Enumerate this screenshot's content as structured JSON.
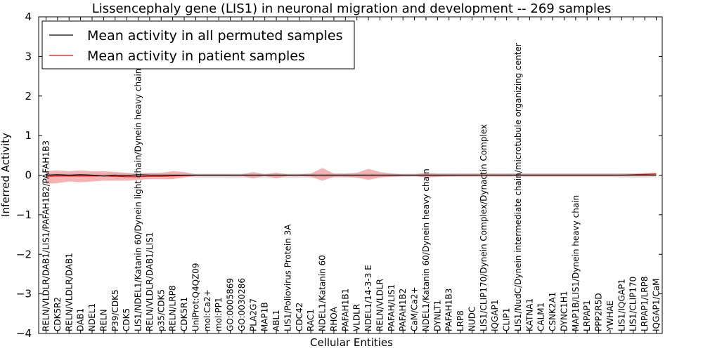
{
  "chart_data": {
    "type": "line",
    "title": "Lissencephaly gene (LIS1) in neuronal migration and development -- 269 samples",
    "xlabel": "Cellular Entities",
    "ylabel": "Inferred Activity",
    "ylim": [
      -4,
      4
    ],
    "yticks": [
      "4",
      "3",
      "2",
      "1",
      "0",
      "−1",
      "−2",
      "−3",
      "−4"
    ],
    "legend": {
      "placement": "top-left",
      "entries": [
        {
          "label": "Mean activity in all permuted samples",
          "color": "#000000"
        },
        {
          "label": "Mean activity in patient samples",
          "color": "#ff0000"
        }
      ]
    },
    "colors": {
      "patient_line": "#ff0000",
      "patient_band": "#f08080",
      "permuted_line": "#000000",
      "permuted_band": "#c8c8c8"
    },
    "categories": [
      "RELN/VLDLR/DAB1/LIS1/PAFAH1B2/PAFAH1B3",
      "CDK5R2",
      "RELN/VLDLR/DAB1",
      "DAB1",
      "NDEL1",
      "RELN",
      "P39/CDK5",
      "CDK5",
      "LIS1/NDEL1/Katanin 60/Dynein light chain/Dynein heavy chain",
      "RELN/VLDLR/DAB1/LIS1",
      "p35/CDK5",
      "RELN/LRP8",
      "CDK5R1",
      "UniProt:Q4QZ09",
      "mol:Ca2+",
      "mol:PP1",
      "GO:0005869",
      "GO:0030286",
      "PLA2G7",
      "MAP1B",
      "ABL1",
      "LIS1/Poliovirus Protein 3A",
      "CDC42",
      "RAC1",
      "NDEL1/Katanin 60",
      "RHOA",
      "PAFAH1B1",
      "VLDLR",
      "NDEL1/14-3-3 E",
      "RELN/VLDLR",
      "PAFAH/LIS1",
      "PAFAH1B2",
      "CaM/Ca2+",
      "NDEL1/Katanin 60/Dynein heavy chain",
      "DYNLT1",
      "PAFAH1B3",
      "LRP8",
      "NUDC",
      "LIS1/CLIP170/Dynein Complex/Dynactin Complex",
      "IQGAP1",
      "CLIP1",
      "LIS1/NudC/Dynein intermediate chain/microtubule organizing center",
      "KATNA1",
      "CALM1",
      "CSNK2A1",
      "DYNC1H1",
      "MAP1B/LIS1/Dynein heavy chain",
      "LRPAP1",
      "PPP2R5D",
      "YWHAE",
      "LIS1/IQGAP1",
      "LIS1/CLIP170",
      "LRPAP1/LRP8",
      "IQGAP1/CaM"
    ],
    "series": [
      {
        "name": "Mean activity in patient samples",
        "values": [
          -0.03,
          -0.02,
          -0.02,
          -0.02,
          -0.02,
          -0.02,
          -0.03,
          -0.04,
          -0.04,
          -0.03,
          -0.03,
          -0.02,
          -0.01,
          0,
          0,
          0,
          0,
          0,
          0,
          0,
          0,
          0,
          0,
          0,
          0,
          0,
          0,
          0,
          0,
          0,
          0,
          0,
          0,
          0,
          0,
          0,
          0,
          0,
          0,
          0,
          0,
          0,
          0,
          0,
          0,
          0,
          0,
          0,
          0,
          0,
          0,
          0.01,
          0.02,
          0.03
        ],
        "lower": [
          -0.22,
          -0.2,
          -0.16,
          -0.18,
          -0.16,
          -0.14,
          -0.14,
          -0.14,
          -0.12,
          -0.1,
          -0.1,
          -0.1,
          -0.06,
          -0.02,
          -0.02,
          -0.02,
          -0.02,
          -0.02,
          -0.08,
          -0.02,
          -0.08,
          -0.02,
          -0.02,
          -0.04,
          -0.14,
          -0.04,
          -0.04,
          -0.06,
          -0.12,
          -0.06,
          -0.04,
          -0.02,
          -0.02,
          -0.06,
          -0.04,
          -0.03,
          -0.02,
          -0.02,
          -0.02,
          -0.02,
          -0.02,
          -0.02,
          -0.02,
          -0.02,
          -0.02,
          -0.02,
          -0.02,
          -0.02,
          -0.02,
          -0.02,
          -0.02,
          -0.01,
          -0.01,
          0
        ],
        "upper": [
          0.1,
          0.12,
          0.1,
          0.12,
          0.1,
          0.1,
          0.08,
          0.06,
          0.04,
          0.06,
          0.06,
          0.1,
          0.08,
          0.02,
          0.02,
          0.02,
          0.02,
          0.02,
          0.08,
          0.02,
          0.06,
          0.02,
          0.02,
          0.04,
          0.18,
          0.04,
          0.04,
          0.06,
          0.16,
          0.08,
          0.04,
          0.02,
          0.02,
          0.06,
          0.04,
          0.04,
          0.04,
          0.04,
          0.04,
          0.04,
          0.04,
          0.04,
          0.04,
          0.04,
          0.04,
          0.04,
          0.04,
          0.04,
          0.04,
          0.04,
          0.04,
          0.04,
          0.05,
          0.06
        ]
      },
      {
        "name": "Mean activity in all permuted samples",
        "values": [
          0,
          0.01,
          0,
          0.01,
          0,
          -0.02,
          0,
          -0.01,
          0.01,
          0,
          0,
          0,
          0,
          0,
          0,
          0,
          0,
          0,
          0,
          0,
          0,
          0,
          0,
          0,
          0,
          0,
          0,
          0,
          0,
          0,
          0,
          0,
          0,
          0,
          0,
          0,
          0,
          0,
          0,
          0,
          0,
          0,
          0,
          0,
          0,
          0,
          0,
          0,
          0,
          0,
          0,
          0,
          0,
          0
        ],
        "lower": [
          -0.04,
          -0.04,
          -0.04,
          -0.04,
          -0.04,
          -0.04,
          -0.04,
          -0.04,
          -0.04,
          -0.04,
          -0.04,
          -0.04,
          -0.04,
          -0.06,
          -0.06,
          -0.06,
          -0.07,
          -0.07,
          -0.06,
          -0.06,
          -0.06,
          -0.07,
          -0.07,
          -0.06,
          -0.06,
          -0.07,
          -0.07,
          -0.06,
          -0.06,
          -0.05,
          -0.05,
          -0.05,
          -0.04,
          -0.05,
          -0.05,
          -0.04,
          -0.05,
          -0.05,
          -0.05,
          -0.05,
          -0.05,
          -0.05,
          -0.05,
          -0.05,
          -0.05,
          -0.05,
          -0.05,
          -0.05,
          -0.05,
          -0.05,
          -0.06,
          -0.06,
          -0.06,
          -0.05
        ],
        "upper": [
          0.04,
          0.04,
          0.04,
          0.04,
          0.04,
          0.04,
          0.04,
          0.04,
          0.04,
          0.04,
          0.04,
          0.04,
          0.04,
          0.04,
          0.04,
          0.04,
          0.04,
          0.04,
          0.04,
          0.04,
          0.04,
          0.04,
          0.04,
          0.04,
          0.04,
          0.04,
          0.04,
          0.04,
          0.04,
          0.04,
          0.04,
          0.04,
          0.04,
          0.04,
          0.04,
          0.04,
          0.04,
          0.04,
          0.04,
          0.04,
          0.04,
          0.04,
          0.04,
          0.04,
          0.04,
          0.04,
          0.04,
          0.04,
          0.04,
          0.04,
          0.04,
          0.04,
          0.04,
          0.04
        ]
      }
    ]
  }
}
